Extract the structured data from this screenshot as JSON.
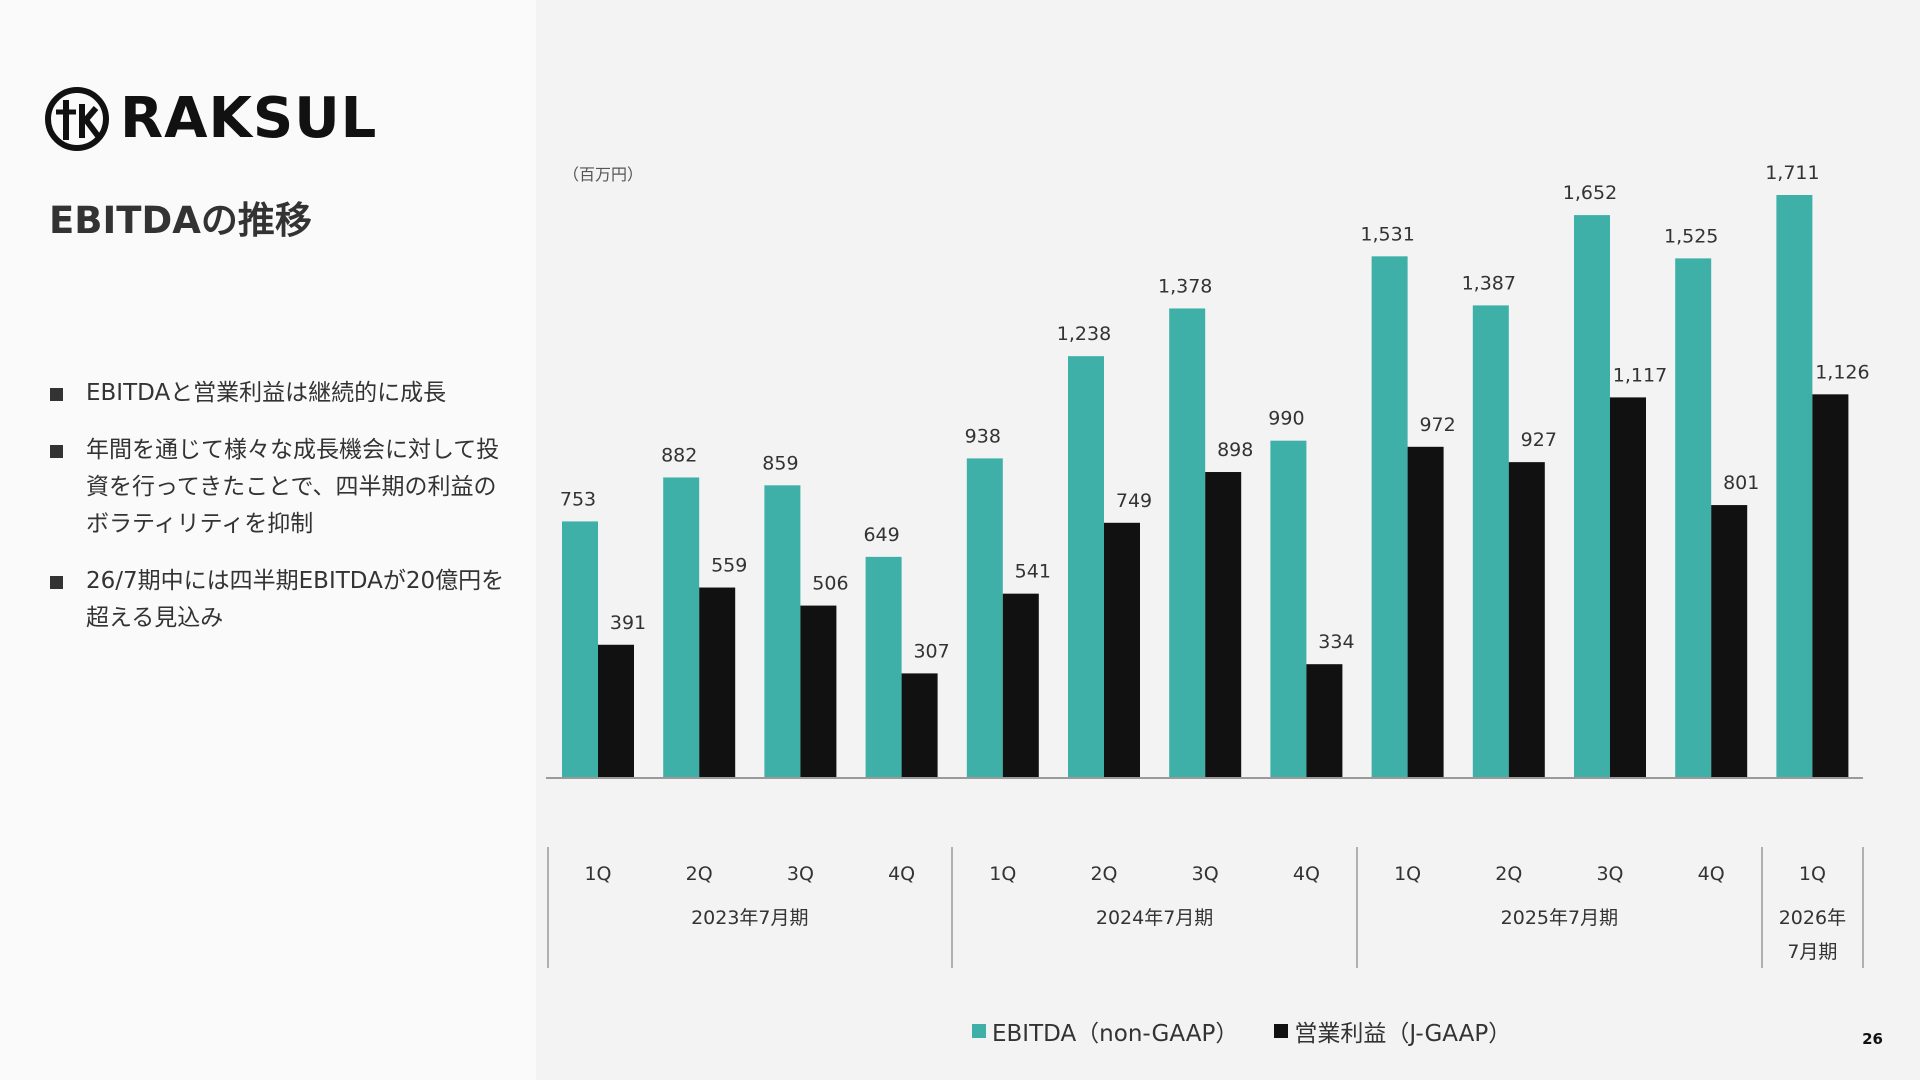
{
  "brand": {
    "name": "RAKSUL",
    "mark_icon": "raksul-logo-mark"
  },
  "slide": {
    "title": "EBITDAの推移",
    "page_number": "26"
  },
  "bullets": [
    "EBITDAと営業利益は継続的に成長",
    "年間を通じて様々な成長機会に対して投資を行ってきたことで、四半期の利益のボラティリティを抑制",
    "26/7期中には四半期EBITDAが20億円を超える見込み"
  ],
  "colors": {
    "ebitda": "#3fb0a8",
    "operating_income": "#111111",
    "axis": "#9a9a9a",
    "text": "#333333"
  },
  "chart_data": {
    "type": "bar",
    "unit_label": "（百万円）",
    "categories": [
      "1Q",
      "2Q",
      "3Q",
      "4Q",
      "1Q",
      "2Q",
      "3Q",
      "4Q",
      "1Q",
      "2Q",
      "3Q",
      "4Q",
      "1Q"
    ],
    "groups": [
      {
        "label": "2023年7月期",
        "start": 0,
        "end": 3
      },
      {
        "label": "2024年7月期",
        "start": 4,
        "end": 7
      },
      {
        "label": "2025年7月期",
        "start": 8,
        "end": 11
      },
      {
        "label": "2026年\n7月期",
        "start": 12,
        "end": 12
      }
    ],
    "series": [
      {
        "name": "EBITDA（non-GAAP）",
        "values": [
          753,
          882,
          859,
          649,
          938,
          1238,
          1378,
          990,
          1531,
          1387,
          1652,
          1525,
          1711
        ],
        "labels": [
          "753",
          "882",
          "859",
          "649",
          "938",
          "1,238",
          "1,378",
          "990",
          "1,531",
          "1,387",
          "1,652",
          "1,525",
          "1,711"
        ]
      },
      {
        "name": "営業利益（J-GAAP）",
        "values": [
          391,
          559,
          506,
          307,
          541,
          749,
          898,
          334,
          972,
          927,
          1117,
          801,
          1126
        ],
        "labels": [
          "391",
          "559",
          "506",
          "307",
          "541",
          "749",
          "898",
          "334",
          "972",
          "927",
          "1,117",
          "801",
          "1,126"
        ]
      }
    ],
    "ylim": [
      0,
      1711
    ]
  }
}
